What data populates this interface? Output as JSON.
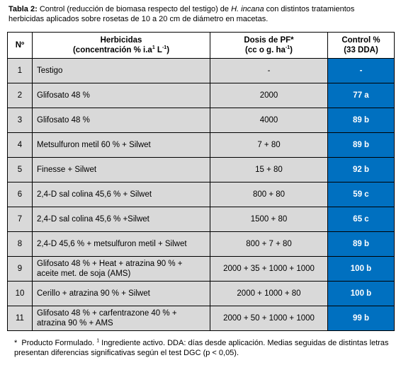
{
  "caption": {
    "label": "Tabla 2:",
    "text_before": "Control (reducción de biomasa respecto del testigo) de",
    "species": "H. incana",
    "text_after": "con distintos tratamientos herbicidas aplicados sobre rosetas de 10 a 20 cm de diámetro en macetas."
  },
  "table": {
    "header": {
      "no": "Nº",
      "herbicidas": {
        "line1": "Herbicidas",
        "line2_start": "(concentración % i.a",
        "sup1": "1",
        "line2_mid": "L",
        "sup2": "-1",
        "line2_end": ")"
      },
      "dosis": {
        "line1": "Dosis de PF*",
        "line2_start": "(cc o g. ha",
        "sup": "-1",
        "line2_end": ")"
      },
      "control": {
        "line1": "Control %",
        "line2": "(33 DDA)"
      }
    },
    "rows": [
      [
        "1",
        "Testigo",
        "-",
        "-"
      ],
      [
        "2",
        "Glifosato  48 %",
        "2000",
        "77 a"
      ],
      [
        "3",
        "Glifosato 48 %",
        "4000",
        "89 b"
      ],
      [
        "4",
        "Metsulfuron metil 60 % + Silwet",
        "7 + 80",
        "89 b"
      ],
      [
        "5",
        "Finesse  + Silwet",
        "15 + 80",
        "92 b"
      ],
      [
        "6",
        "2,4-D sal colina 45,6 % + Silwet",
        "800 + 80",
        "59 c"
      ],
      [
        "7",
        "2,4-D sal colina 45,6 % +Silwet",
        "1500 + 80",
        "65 c"
      ],
      [
        "8",
        "2,4-D 45,6 % + metsulfuron metil + Silwet",
        "800 + 7 + 80",
        "89 b"
      ],
      [
        "9",
        "Glifosato 48 % + Heat + atrazina 90 % + aceite met. de soja (AMS)",
        "2000 + 35 + 1000 + 1000",
        "100 b"
      ],
      [
        "10",
        "Cerillo + atrazina 90 % + Silwet",
        "2000 + 1000 + 80",
        "100 b"
      ],
      [
        "11",
        "Glifosato 48 % + carfentrazone 40 % + atrazina 90 % + AMS",
        "2000 + 50 + 1000 + 1000",
        "99 b"
      ]
    ]
  },
  "footnote": {
    "star": "*",
    "text1": "Producto Formulado.",
    "sup": "1",
    "text2": "Ingrediente activo. DDA: días desde aplicación. Medias seguidas de distintas letras presentan diferencias significativas según el test DGC (p < 0,05)."
  }
}
